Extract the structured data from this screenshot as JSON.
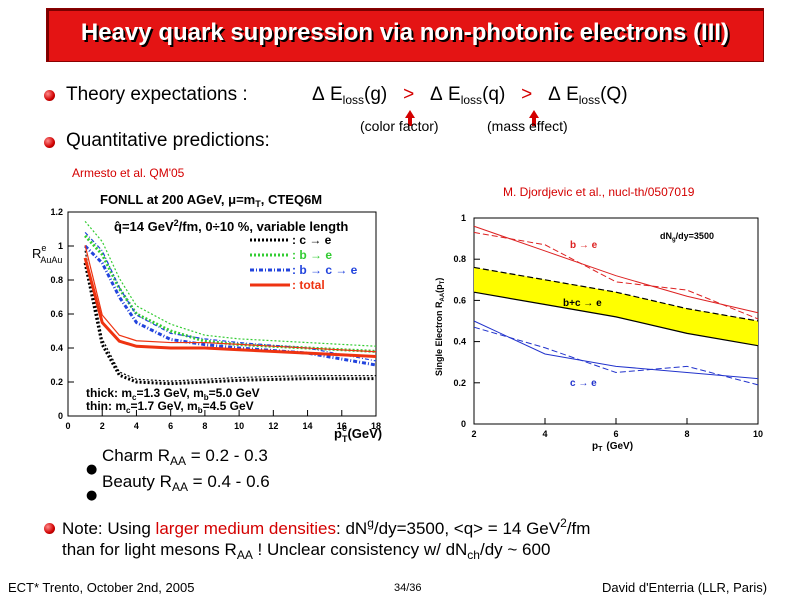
{
  "title": "Heavy quark suppression via non-photonic electrons (III)",
  "theory": {
    "label": "Theory expectations :",
    "delta": "Δ",
    "e": "E",
    "loss": "loss",
    "g": "(g)",
    "q": "(q)",
    "Q": "(Q)",
    "gt": ">",
    "color_factor": "(color factor)",
    "mass_effect": "(mass effect)"
  },
  "quant": {
    "label": "Quantitative predictions:"
  },
  "armesto": "Armesto et al. QM'05",
  "djordjevic": "M. Djordjevic et al., nucl-th/0507019",
  "left_plot": {
    "header": "FONLL at 200 AGeV, μ=m",
    "header_sub": "T",
    "header_tail": ", CTEQ6M",
    "qhat_pre": "q̂=14 GeV",
    "qhat_sup": "2",
    "qhat_post": "/fm, 0÷10 %, variable length",
    "legend": [
      {
        "label": ": c → e",
        "color": "#000000"
      },
      {
        "label": ": b → e",
        "color": "#33cc33"
      },
      {
        "label": ": b → c → e",
        "color": "#2244dd"
      },
      {
        "label": ": total",
        "color": "#ee3311"
      }
    ],
    "thick_label": "thick: m",
    "thick_c_sub": "c",
    "thick_mid": "=1.3 GeV, m",
    "thick_b_sub": "b",
    "thick_end": "=5.0 GeV",
    "thin_label": "thin: m",
    "thin_c_sub": "c",
    "thin_mid": "=1.7 GeV, m",
    "thin_b_sub": "b",
    "thin_end": "=4.5 GeV",
    "ylabel_r": "R",
    "ylabel_sup": "e",
    "ylabel_sub": "AuAu",
    "xlabel_p": "p",
    "xlabel_sup": "e",
    "xlabel_sub": "T",
    "xlabel_unit": "(GeV)",
    "xticks": [
      "0",
      "2",
      "4",
      "6",
      "8",
      "10",
      "12",
      "14",
      "16",
      "18"
    ],
    "yticks": [
      "0",
      "0.2",
      "0.4",
      "0.6",
      "0.8",
      "1",
      "1.2"
    ]
  },
  "right_plot": {
    "ylabel": "Single Electron R",
    "ylabel_sub": "AA",
    "ylabel_tail": "(p",
    "ylabel_tail_sub": "T",
    "ylabel_close": ")",
    "xlabel_p": "p",
    "xlabel_sub": "T",
    "xlabel_unit": "(GeV)",
    "dndy": "dN",
    "dndy_sub": "g",
    "dndy_tail": "/dy=3500",
    "b_label": "b → e",
    "bc_label": "b+c → e",
    "c_label": "c → e",
    "xticks": [
      "2",
      "4",
      "6",
      "8",
      "10"
    ],
    "yticks": [
      "0",
      "0.2",
      "0.4",
      "0.6",
      "0.8",
      "1"
    ]
  },
  "charm": {
    "pre": "Charm R",
    "sub": "AA",
    "post": " = 0.2 - 0.3"
  },
  "beauty": {
    "pre": "Beauty R",
    "sub": "AA",
    "post": " = 0.4 - 0.6"
  },
  "note": {
    "pre": "Note: Using ",
    "red": "larger medium densities",
    "mid": ": dN",
    "g_sup": "g",
    "mid2": "/dy=3500, <q> = 14 GeV",
    "sup2": "2",
    "end": "/fm",
    "line2_pre": "than for light mesons R",
    "line2_sub": "AA",
    "line2_mid": " !  Unclear consistency w/ dN",
    "line2_ch": "ch",
    "line2_end": "/dy ~ 600"
  },
  "footer": {
    "left": "ECT* Trento, October 2nd, 2005",
    "center": "34/36",
    "right": "David d'Enterria (LLR, Paris)"
  },
  "chart_data": [
    {
      "type": "line",
      "xlabel": "p_T^e (GeV)",
      "ylabel": "R^e_AuAu",
      "xlim": [
        0,
        18
      ],
      "ylim": [
        0,
        1.2
      ],
      "series": [
        {
          "name": ": c → e",
          "x": [
            1,
            2,
            3,
            4,
            6,
            8,
            10,
            14,
            18
          ],
          "values": [
            0.9,
            0.42,
            0.24,
            0.2,
            0.19,
            0.2,
            0.21,
            0.22,
            0.22
          ]
        },
        {
          "name": ": b → e",
          "x": [
            1,
            2,
            3,
            4,
            6,
            8,
            10,
            14,
            18
          ],
          "values": [
            1.06,
            0.95,
            0.75,
            0.6,
            0.5,
            0.44,
            0.42,
            0.4,
            0.38
          ]
        },
        {
          "name": ": b → c → e",
          "x": [
            1,
            2,
            3,
            4,
            6,
            8,
            10,
            14,
            18
          ],
          "values": [
            1.0,
            0.9,
            0.7,
            0.55,
            0.45,
            0.42,
            0.4,
            0.37,
            0.3
          ]
        },
        {
          "name": ": total",
          "x": [
            1,
            2,
            3,
            4,
            6,
            8,
            10,
            14,
            18
          ],
          "values": [
            0.93,
            0.55,
            0.44,
            0.41,
            0.4,
            0.4,
            0.39,
            0.37,
            0.35
          ]
        }
      ]
    },
    {
      "type": "line",
      "xlabel": "p_T (GeV)",
      "ylabel": "Single Electron R_AA(p_T)",
      "xlim": [
        2,
        10
      ],
      "ylim": [
        0,
        1
      ],
      "series": [
        {
          "name": "b → e",
          "x": [
            2,
            4,
            6,
            8,
            10
          ],
          "values": [
            0.96,
            0.84,
            0.72,
            0.62,
            0.54
          ]
        },
        {
          "name": "b+c → e",
          "x": [
            2,
            4,
            6,
            8,
            10
          ],
          "values": [
            0.7,
            0.64,
            0.58,
            0.5,
            0.44
          ]
        },
        {
          "name": "c → e",
          "x": [
            2,
            4,
            6,
            8,
            10
          ],
          "values": [
            0.5,
            0.34,
            0.28,
            0.25,
            0.22
          ]
        }
      ]
    }
  ]
}
